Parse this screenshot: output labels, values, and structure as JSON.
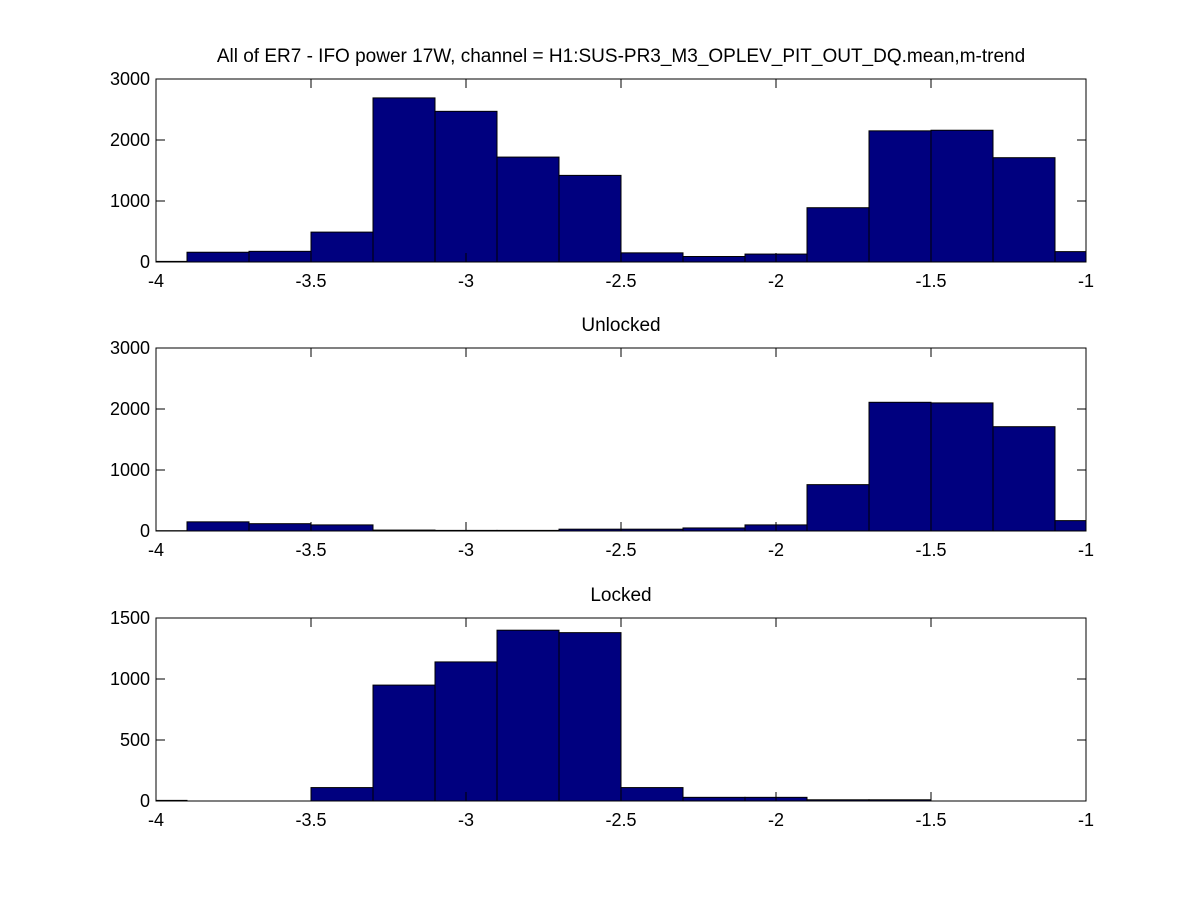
{
  "chart_data": [
    {
      "type": "bar",
      "title": "All of ER7 - IFO power 17W, channel = H1:SUS-PR3_M3_OPLEV_PIT_OUT_DQ.mean,m-trend",
      "xlabel": "",
      "ylabel": "",
      "xlim": [
        -4,
        -1
      ],
      "ylim": [
        0,
        3000
      ],
      "xticks": [
        -4,
        -3.5,
        -3,
        -2.5,
        -2,
        -1.5,
        -1
      ],
      "xtick_labels": [
        "-4",
        "-3.5",
        "-3",
        "-2.5",
        "-2",
        "-1.5",
        "-1"
      ],
      "yticks": [
        0,
        1000,
        2000,
        3000
      ],
      "ytick_labels": [
        "0",
        "1000",
        "2000",
        "3000"
      ],
      "grid": false,
      "bar_color": "#00007f",
      "bin_edges": [
        -4.0,
        -3.9,
        -3.7,
        -3.5,
        -3.3,
        -3.1,
        -2.9,
        -2.7,
        -2.5,
        -2.3,
        -2.1,
        -1.9,
        -1.7,
        -1.5,
        -1.3,
        -1.1,
        -1.0
      ],
      "values": [
        10,
        160,
        175,
        490,
        2690,
        2470,
        1720,
        1420,
        150,
        90,
        130,
        890,
        2150,
        2160,
        1710,
        170
      ]
    },
    {
      "type": "bar",
      "title": "Unlocked",
      "xlabel": "",
      "ylabel": "",
      "xlim": [
        -4,
        -1
      ],
      "ylim": [
        0,
        3000
      ],
      "xticks": [
        -4,
        -3.5,
        -3,
        -2.5,
        -2,
        -1.5,
        -1
      ],
      "xtick_labels": [
        "-4",
        "-3.5",
        "-3",
        "-2.5",
        "-2",
        "-1.5",
        "-1"
      ],
      "yticks": [
        0,
        1000,
        2000,
        3000
      ],
      "ytick_labels": [
        "0",
        "1000",
        "2000",
        "3000"
      ],
      "grid": false,
      "bar_color": "#00007f",
      "bin_edges": [
        -4.0,
        -3.9,
        -3.7,
        -3.5,
        -3.3,
        -3.1,
        -2.9,
        -2.7,
        -2.5,
        -2.3,
        -2.1,
        -1.9,
        -1.7,
        -1.5,
        -1.3,
        -1.1,
        -1.0
      ],
      "values": [
        5,
        150,
        120,
        100,
        15,
        10,
        10,
        30,
        30,
        50,
        100,
        760,
        2110,
        2100,
        1710,
        170
      ]
    },
    {
      "type": "bar",
      "title": "Locked",
      "xlabel": "",
      "ylabel": "",
      "xlim": [
        -4,
        -1
      ],
      "ylim": [
        0,
        1500
      ],
      "xticks": [
        -4,
        -3.5,
        -3,
        -2.5,
        -2,
        -1.5,
        -1
      ],
      "xtick_labels": [
        "-4",
        "-3.5",
        "-3",
        "-2.5",
        "-2",
        "-1.5",
        "-1"
      ],
      "yticks": [
        0,
        500,
        1000,
        1500
      ],
      "ytick_labels": [
        "0",
        "500",
        "1000",
        "1500"
      ],
      "grid": false,
      "bar_color": "#00007f",
      "bin_edges": [
        -4.0,
        -3.9,
        -3.7,
        -3.5,
        -3.3,
        -3.1,
        -2.9,
        -2.7,
        -2.5,
        -2.3,
        -2.1,
        -1.9,
        -1.7,
        -1.5,
        -1.3,
        -1.1,
        -1.0
      ],
      "values": [
        5,
        0,
        0,
        110,
        950,
        1140,
        1400,
        1380,
        110,
        30,
        30,
        10,
        10,
        0,
        0,
        0
      ]
    }
  ]
}
